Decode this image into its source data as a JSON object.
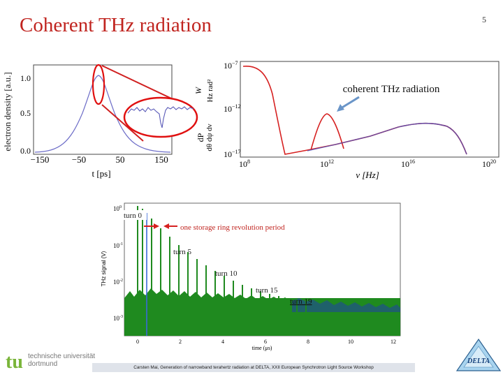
{
  "slide": {
    "title": "Coherent THz radiation",
    "page_number": "5",
    "footer": "Carsten Mai, Generation of narrowband terahertz radiation at DELTA, XXII European Synchrotron Light Source Workshop",
    "university_line1": "technische universität",
    "university_line2": "dortmund",
    "logo_left_text": "tu",
    "logo_right_text": "DELTA"
  },
  "colors": {
    "title": "#c0241f",
    "green": "#1f8a1f",
    "blue": "#1f3fa8",
    "red": "#d62020"
  },
  "density_plot": {
    "ylabel": "electron density [a.u.]",
    "xlabel": "t [ps]",
    "yticks": [
      "1.0",
      "0.5",
      "0.0"
    ],
    "xticks": [
      "−150",
      "−50",
      "50",
      "150"
    ]
  },
  "spectrum_plot": {
    "ylabel_num": "dP",
    "ylabel_den": "dθ dψ dν",
    "ylabel_unit": "W",
    "ylabel_unit2": "Hz rad²",
    "xlabel": "ν [Hz]",
    "yticks": [
      {
        "base": "10",
        "exp": "−7"
      },
      {
        "base": "10",
        "exp": "−12"
      },
      {
        "base": "10",
        "exp": "−17"
      }
    ],
    "xticks": [
      {
        "base": "10",
        "exp": "8"
      },
      {
        "base": "10",
        "exp": "12"
      },
      {
        "base": "10",
        "exp": "16"
      },
      {
        "base": "10",
        "exp": "20"
      }
    ],
    "annotation": "coherent THz radiation"
  },
  "thz_plot": {
    "ylabel": "THz signal (V)",
    "xlabel": "time (μs)",
    "yticks": [
      {
        "base": "10",
        "exp": "0"
      },
      {
        "base": "10",
        "exp": "-1"
      },
      {
        "base": "10",
        "exp": "-2"
      },
      {
        "base": "10",
        "exp": "-3"
      }
    ],
    "xticks": [
      "0",
      "2",
      "4",
      "6",
      "8",
      "10",
      "12"
    ],
    "labels": {
      "turn0": "turn 0",
      "period": "one storage ring revolution period",
      "turn5": "turn 5",
      "turn10": "turn 10",
      "turn15": "turn 15",
      "turn19": "turn 19"
    }
  }
}
